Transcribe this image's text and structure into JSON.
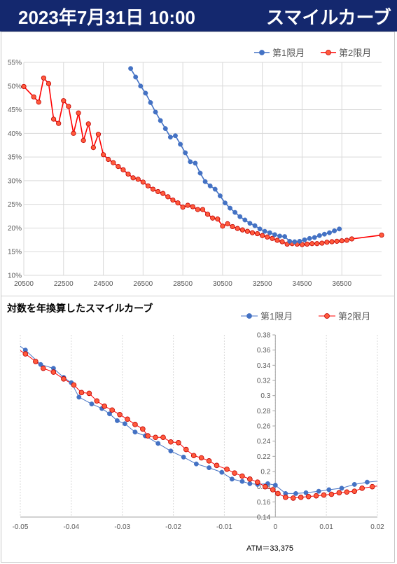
{
  "header": {
    "date": "2023年7月31日 10:00",
    "title": "スマイルカーブ"
  },
  "colors": {
    "header_bg": "#14286e",
    "series1": "#4472c4",
    "series2": "#ff0000",
    "series2_marker": "#ff5a3c"
  },
  "chart_data": [
    {
      "type": "line",
      "title": "",
      "legend": "top-right",
      "grid": true,
      "xlim": [
        20500,
        38500
      ],
      "ylim": [
        10,
        55
      ],
      "x_ticks": [
        "20500",
        "22500",
        "24500",
        "26500",
        "28500",
        "30500",
        "32500",
        "34500",
        "36500"
      ],
      "y_ticks": [
        "10%",
        "15%",
        "20%",
        "25%",
        "30%",
        "35%",
        "40%",
        "45%",
        "50%",
        "55%"
      ],
      "series": [
        {
          "name": "第1限月",
          "color": "#4472c4",
          "points": [
            [
              25875,
              53.7
            ],
            [
              26125,
              51.9
            ],
            [
              26375,
              50.0
            ],
            [
              26625,
              48.5
            ],
            [
              26875,
              46.5
            ],
            [
              27125,
              44.5
            ],
            [
              27375,
              42.7
            ],
            [
              27625,
              41.0
            ],
            [
              27875,
              39.2
            ],
            [
              28125,
              39.5
            ],
            [
              28375,
              37.7
            ],
            [
              28625,
              35.9
            ],
            [
              28875,
              34.0
            ],
            [
              29125,
              33.7
            ],
            [
              29375,
              31.6
            ],
            [
              29625,
              29.8
            ],
            [
              29875,
              28.9
            ],
            [
              30125,
              28.2
            ],
            [
              30375,
              26.8
            ],
            [
              30625,
              25.3
            ],
            [
              30875,
              24.2
            ],
            [
              31125,
              23.3
            ],
            [
              31375,
              22.4
            ],
            [
              31625,
              21.7
            ],
            [
              31875,
              21.0
            ],
            [
              32125,
              20.5
            ],
            [
              32375,
              19.8
            ],
            [
              32625,
              19.3
            ],
            [
              32875,
              19.0
            ],
            [
              33125,
              18.6
            ],
            [
              33375,
              18.3
            ],
            [
              33625,
              18.2
            ],
            [
              33875,
              17.2
            ],
            [
              34125,
              17.1
            ],
            [
              34375,
              17.2
            ],
            [
              34625,
              17.5
            ],
            [
              34875,
              17.8
            ],
            [
              35125,
              18.0
            ],
            [
              35375,
              18.4
            ],
            [
              35625,
              18.7
            ],
            [
              35875,
              19.0
            ],
            [
              36125,
              19.4
            ],
            [
              36375,
              19.8
            ]
          ]
        },
        {
          "name": "第2限月",
          "color": "#ff0000",
          "points": [
            [
              20500,
              49.9
            ],
            [
              21000,
              47.7
            ],
            [
              21250,
              46.6
            ],
            [
              21500,
              51.7
            ],
            [
              21750,
              50.5
            ],
            [
              22000,
              43.0
            ],
            [
              22250,
              42.1
            ],
            [
              22500,
              46.9
            ],
            [
              22750,
              45.7
            ],
            [
              23000,
              40.0
            ],
            [
              23250,
              44.3
            ],
            [
              23500,
              38.5
            ],
            [
              23750,
              42.0
            ],
            [
              24000,
              37.0
            ],
            [
              24250,
              39.8
            ],
            [
              24500,
              35.5
            ],
            [
              24750,
              34.5
            ],
            [
              25000,
              33.8
            ],
            [
              25250,
              33.0
            ],
            [
              25500,
              32.3
            ],
            [
              25750,
              31.4
            ],
            [
              26000,
              30.6
            ],
            [
              26250,
              30.3
            ],
            [
              26500,
              29.7
            ],
            [
              26750,
              28.9
            ],
            [
              27000,
              28.2
            ],
            [
              27250,
              27.7
            ],
            [
              27500,
              27.3
            ],
            [
              27750,
              26.6
            ],
            [
              28000,
              25.9
            ],
            [
              28250,
              25.3
            ],
            [
              28500,
              24.4
            ],
            [
              28750,
              24.8
            ],
            [
              29000,
              24.5
            ],
            [
              29250,
              23.9
            ],
            [
              29500,
              23.9
            ],
            [
              29750,
              22.9
            ],
            [
              30000,
              22.1
            ],
            [
              30250,
              21.9
            ],
            [
              30500,
              20.4
            ],
            [
              30750,
              20.9
            ],
            [
              31000,
              20.3
            ],
            [
              31250,
              19.9
            ],
            [
              31500,
              19.6
            ],
            [
              31750,
              19.3
            ],
            [
              32000,
              19.0
            ],
            [
              32250,
              18.8
            ],
            [
              32500,
              18.4
            ],
            [
              32750,
              18.1
            ],
            [
              33000,
              17.8
            ],
            [
              33250,
              17.4
            ],
            [
              33500,
              17.1
            ],
            [
              33750,
              16.6
            ],
            [
              34000,
              16.7
            ],
            [
              34250,
              16.6
            ],
            [
              34500,
              16.5
            ],
            [
              34750,
              16.6
            ],
            [
              35000,
              16.7
            ],
            [
              35250,
              16.7
            ],
            [
              35500,
              16.8
            ],
            [
              35750,
              17.0
            ],
            [
              36000,
              17.1
            ],
            [
              36250,
              17.2
            ],
            [
              36500,
              17.3
            ],
            [
              36750,
              17.4
            ],
            [
              37000,
              17.7
            ],
            [
              38500,
              18.5
            ]
          ]
        }
      ]
    },
    {
      "type": "line",
      "title": "対数を年換算したスマイルカーブ",
      "legend": "top-right",
      "grid": true,
      "xlim": [
        -0.05,
        0.02
      ],
      "ylim": [
        0.14,
        0.38
      ],
      "x_ticks": [
        "-0.05",
        "-0.04",
        "-0.03",
        "-0.02",
        "-0.01",
        "0",
        "0.01",
        "0.02"
      ],
      "y_ticks": [
        "0.14",
        "0.16",
        "0.18",
        "0.2",
        "0.22",
        "0.24",
        "0.26",
        "0.28",
        "0.3",
        "0.32",
        "0.34",
        "0.36",
        "0.38"
      ],
      "annotation": "ATM＝33,375",
      "series": [
        {
          "name": "第1限月",
          "color": "#4472c4",
          "points": [
            [
              -0.052,
              0.375
            ],
            [
              -0.049,
              0.36
            ],
            [
              -0.046,
              0.341
            ],
            [
              -0.0435,
              0.336
            ],
            [
              -0.0415,
              0.324
            ],
            [
              -0.04,
              0.317
            ],
            [
              -0.0385,
              0.298
            ],
            [
              -0.036,
              0.289
            ],
            [
              -0.034,
              0.283
            ],
            [
              -0.0325,
              0.276
            ],
            [
              -0.031,
              0.267
            ],
            [
              -0.0295,
              0.263
            ],
            [
              -0.0275,
              0.252
            ],
            [
              -0.0255,
              0.247
            ],
            [
              -0.023,
              0.237
            ],
            [
              -0.0205,
              0.227
            ],
            [
              -0.018,
              0.219
            ],
            [
              -0.0155,
              0.21
            ],
            [
              -0.013,
              0.205
            ],
            [
              -0.0105,
              0.199
            ],
            [
              -0.0085,
              0.19
            ],
            [
              -0.0065,
              0.187
            ],
            [
              -0.005,
              0.184
            ],
            [
              -0.0035,
              0.183
            ],
            [
              -0.0015,
              0.184
            ],
            [
              0,
              0.182
            ],
            [
              0.002,
              0.171
            ],
            [
              0.004,
              0.171
            ],
            [
              0.006,
              0.172
            ],
            [
              0.0085,
              0.174
            ],
            [
              0.0105,
              0.176
            ],
            [
              0.013,
              0.178
            ],
            [
              0.0155,
              0.183
            ],
            [
              0.018,
              0.186
            ],
            [
              0.021,
              0.188
            ]
          ]
        },
        {
          "name": "第2限月",
          "color": "#ff0000",
          "points": [
            [
              -0.052,
              0.368
            ],
            [
              -0.049,
              0.355
            ],
            [
              -0.047,
              0.345
            ],
            [
              -0.0455,
              0.336
            ],
            [
              -0.0435,
              0.331
            ],
            [
              -0.0415,
              0.322
            ],
            [
              -0.0395,
              0.314
            ],
            [
              -0.038,
              0.304
            ],
            [
              -0.0365,
              0.303
            ],
            [
              -0.035,
              0.293
            ],
            [
              -0.0335,
              0.286
            ],
            [
              -0.032,
              0.281
            ],
            [
              -0.0305,
              0.275
            ],
            [
              -0.029,
              0.269
            ],
            [
              -0.0275,
              0.262
            ],
            [
              -0.026,
              0.256
            ],
            [
              -0.025,
              0.247
            ],
            [
              -0.0235,
              0.245
            ],
            [
              -0.022,
              0.245
            ],
            [
              -0.0205,
              0.239
            ],
            [
              -0.019,
              0.238
            ],
            [
              -0.0175,
              0.229
            ],
            [
              -0.016,
              0.221
            ],
            [
              -0.0145,
              0.218
            ],
            [
              -0.013,
              0.214
            ],
            [
              -0.0115,
              0.208
            ],
            [
              -0.0095,
              0.203
            ],
            [
              -0.008,
              0.198
            ],
            [
              -0.0065,
              0.194
            ],
            [
              -0.005,
              0.19
            ],
            [
              -0.0035,
              0.186
            ],
            [
              -0.002,
              0.18
            ],
            [
              -0.0005,
              0.176
            ],
            [
              0.0005,
              0.171
            ],
            [
              0.002,
              0.166
            ],
            [
              0.0035,
              0.165
            ],
            [
              0.005,
              0.166
            ],
            [
              0.0065,
              0.167
            ],
            [
              0.008,
              0.168
            ],
            [
              0.0095,
              0.169
            ],
            [
              0.011,
              0.17
            ],
            [
              0.0125,
              0.172
            ],
            [
              0.014,
              0.173
            ],
            [
              0.0155,
              0.174
            ],
            [
              0.017,
              0.178
            ],
            [
              0.019,
              0.18
            ],
            [
              0.021,
              0.182
            ]
          ]
        }
      ]
    }
  ]
}
